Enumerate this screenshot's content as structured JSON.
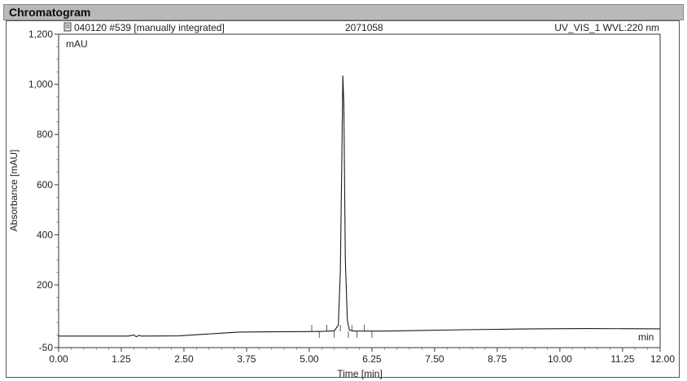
{
  "section": {
    "title": "Chromatogram"
  },
  "header": {
    "run_info": "040120 #539 [manually integrated]",
    "sample_id": "2071058",
    "channel": "UV_VIS_1 WVL:220 nm",
    "icon": "document-icon"
  },
  "chart_data": {
    "type": "line",
    "title": "",
    "xlabel": "Time [min]",
    "ylabel": "Absorbance [mAU]",
    "y_unit_label": "mAU",
    "x_unit_label": "min",
    "xlim": [
      0,
      12
    ],
    "ylim": [
      -50,
      1200
    ],
    "x_ticks": [
      "0.00",
      "1.25",
      "2.50",
      "3.75",
      "5.00",
      "6.25",
      "7.50",
      "8.75",
      "10.00",
      "11.25",
      "12.00"
    ],
    "x_tick_values": [
      0,
      1.25,
      2.5,
      3.75,
      5,
      6.25,
      7.5,
      8.75,
      10,
      11.25,
      12
    ],
    "y_ticks": [
      "-50",
      "200",
      "400",
      "600",
      "800",
      "1,000",
      "1,200"
    ],
    "y_tick_values": [
      -50,
      200,
      400,
      600,
      800,
      1000,
      1200
    ],
    "grid": false,
    "series": [
      {
        "x": [
          0,
          1.4,
          1.5,
          1.55,
          1.6,
          1.65,
          2.4,
          2.8,
          3.2,
          3.6,
          4.2,
          5.0,
          5.3,
          5.5,
          5.58,
          5.62,
          5.65,
          5.67,
          5.69,
          5.72,
          5.76,
          5.8,
          5.9,
          6.5,
          8.0,
          9.5,
          10.5,
          12.0
        ],
        "y": [
          -4,
          -4,
          1,
          -7,
          -1,
          -4,
          -3,
          2,
          7,
          12,
          13,
          14,
          15,
          17,
          40,
          250,
          700,
          1035,
          920,
          300,
          60,
          20,
          16,
          16,
          21,
          25,
          26,
          25
        ]
      }
    ],
    "integration_marks_x": [
      5.05,
      5.2,
      5.35,
      5.5,
      5.62,
      5.78,
      5.85,
      5.95,
      6.1,
      6.25
    ]
  }
}
